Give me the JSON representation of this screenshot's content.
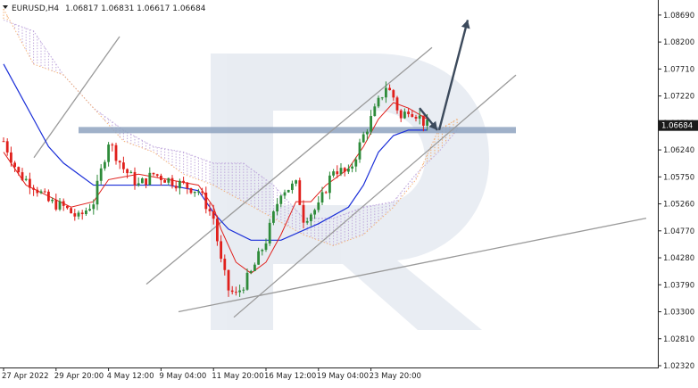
{
  "header": {
    "symbol": "EURUSD,H4",
    "ohlc": "1.06817 1.06831 1.06617 1.06684"
  },
  "colors": {
    "bull": "#2e8b3a",
    "bear": "#e0201c",
    "fast_ma": "#e0201c",
    "slow_ma": "#1a2ed8",
    "kumo_bull": "#b79bd8",
    "kumo_bear": "#f2a35c",
    "channel": "#9a9a9a",
    "price_zone": "#8fa3bf",
    "price_tag": "#1a1a1a"
  },
  "chart_data": {
    "type": "candlestick",
    "timeframe": "H4",
    "ylim": [
      1.0232,
      1.0885
    ],
    "y_ticks": [
      "1.08690",
      "1.08200",
      "1.07710",
      "1.07220",
      "1.06730",
      "1.06240",
      "1.05750",
      "1.05260",
      "1.04770",
      "1.04280",
      "1.03790",
      "1.03300",
      "1.02810",
      "1.02320"
    ],
    "current_price": "1.06684",
    "x_ticks": [
      "27 Apr 2022",
      "29 Apr 20:00",
      "4 May 12:00",
      "9 May 04:00",
      "11 May 20:00",
      "16 May 12:00",
      "19 May 04:00",
      "23 May 20:00"
    ],
    "x_tick_bars": [
      0,
      14,
      28,
      42,
      56,
      70,
      84,
      98
    ],
    "bars": 121,
    "close_path": [
      [
        0,
        1.064
      ],
      [
        4,
        1.058
      ],
      [
        8,
        1.056
      ],
      [
        12,
        1.053
      ],
      [
        16,
        1.052
      ],
      [
        20,
        1.05
      ],
      [
        24,
        1.053
      ],
      [
        28,
        1.064
      ],
      [
        32,
        1.059
      ],
      [
        36,
        1.056
      ],
      [
        40,
        1.058
      ],
      [
        44,
        1.057
      ],
      [
        48,
        1.056
      ],
      [
        52,
        1.055
      ],
      [
        56,
        1.05
      ],
      [
        58,
        1.042
      ],
      [
        60,
        1.037
      ],
      [
        62,
        1.036
      ],
      [
        66,
        1.04
      ],
      [
        70,
        1.046
      ],
      [
        74,
        1.055
      ],
      [
        78,
        1.056
      ],
      [
        80,
        1.05
      ],
      [
        84,
        1.052
      ],
      [
        88,
        1.059
      ],
      [
        92,
        1.058
      ],
      [
        96,
        1.065
      ],
      [
        100,
        1.071
      ],
      [
        102,
        1.074
      ],
      [
        104,
        1.072
      ],
      [
        106,
        1.068
      ],
      [
        108,
        1.07
      ],
      [
        110,
        1.069
      ],
      [
        113,
        1.0668
      ]
    ],
    "fast_ma": [
      [
        0,
        1.062
      ],
      [
        6,
        1.056
      ],
      [
        12,
        1.054
      ],
      [
        18,
        1.052
      ],
      [
        24,
        1.053
      ],
      [
        28,
        1.057
      ],
      [
        36,
        1.058
      ],
      [
        44,
        1.057
      ],
      [
        52,
        1.056
      ],
      [
        56,
        1.052
      ],
      [
        58,
        1.048
      ],
      [
        62,
        1.042
      ],
      [
        66,
        1.04
      ],
      [
        70,
        1.042
      ],
      [
        74,
        1.047
      ],
      [
        78,
        1.053
      ],
      [
        82,
        1.053
      ],
      [
        86,
        1.056
      ],
      [
        92,
        1.059
      ],
      [
        96,
        1.063
      ],
      [
        100,
        1.068
      ],
      [
        104,
        1.071
      ],
      [
        108,
        1.07
      ],
      [
        113,
        1.068
      ]
    ],
    "slow_ma": [
      [
        0,
        1.078
      ],
      [
        4,
        1.073
      ],
      [
        8,
        1.068
      ],
      [
        12,
        1.063
      ],
      [
        16,
        1.06
      ],
      [
        20,
        1.058
      ],
      [
        24,
        1.056
      ],
      [
        28,
        1.056
      ],
      [
        36,
        1.056
      ],
      [
        44,
        1.056
      ],
      [
        52,
        1.055
      ],
      [
        56,
        1.051
      ],
      [
        60,
        1.048
      ],
      [
        66,
        1.046
      ],
      [
        70,
        1.046
      ],
      [
        74,
        1.046
      ],
      [
        84,
        1.049
      ],
      [
        92,
        1.052
      ],
      [
        96,
        1.056
      ],
      [
        100,
        1.062
      ],
      [
        104,
        1.065
      ],
      [
        108,
        1.066
      ],
      [
        113,
        1.066
      ]
    ],
    "kumo_a": [
      [
        0,
        1.086
      ],
      [
        8,
        1.084
      ],
      [
        16,
        1.076
      ],
      [
        24,
        1.07
      ],
      [
        32,
        1.066
      ],
      [
        40,
        1.063
      ],
      [
        48,
        1.062
      ],
      [
        56,
        1.06
      ],
      [
        64,
        1.06
      ],
      [
        72,
        1.056
      ],
      [
        80,
        1.05
      ],
      [
        88,
        1.05
      ],
      [
        96,
        1.052
      ],
      [
        104,
        1.053
      ],
      [
        110,
        1.058
      ],
      [
        116,
        1.062
      ],
      [
        121,
        1.066
      ]
    ],
    "kumo_b": [
      [
        0,
        1.088
      ],
      [
        8,
        1.078
      ],
      [
        16,
        1.076
      ],
      [
        24,
        1.07
      ],
      [
        32,
        1.064
      ],
      [
        40,
        1.062
      ],
      [
        48,
        1.058
      ],
      [
        56,
        1.056
      ],
      [
        64,
        1.053
      ],
      [
        72,
        1.05
      ],
      [
        80,
        1.047
      ],
      [
        88,
        1.045
      ],
      [
        96,
        1.047
      ],
      [
        104,
        1.052
      ],
      [
        110,
        1.057
      ],
      [
        116,
        1.066
      ],
      [
        121,
        1.068
      ]
    ],
    "channel_lines": [
      [
        [
          38,
          1.061
        ],
        [
          134,
          1.083
        ]
      ],
      [
        [
          164,
          1.038
        ],
        [
          484,
          1.081
        ]
      ],
      [
        [
          200,
          1.033
        ],
        [
          724,
          1.05
        ]
      ],
      [
        [
          262,
          1.032
        ],
        [
          578,
          1.076
        ]
      ]
    ],
    "support_zone": {
      "x1": 88,
      "x2": 578,
      "y": 1.066
    },
    "forecast_arrows": [
      [
        [
          470,
          1.07
        ],
        [
          490,
          1.066
        ]
      ],
      [
        [
          492,
          1.066
        ],
        [
          524,
          1.086
        ]
      ]
    ]
  }
}
